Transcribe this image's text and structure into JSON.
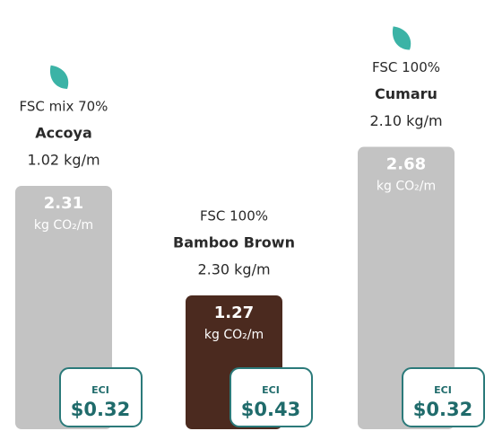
{
  "chart_data": {
    "type": "bar",
    "categories": [
      "Accoya",
      "Bamboo Brown",
      "Cumaru"
    ],
    "certifications": [
      "FSC mix 70%",
      "FSC 100%",
      "FSC 100%"
    ],
    "weights": [
      "1.02 kg/m",
      "2.30 kg/m",
      "2.10 kg/m"
    ],
    "values": [
      2.31,
      1.27,
      2.68
    ],
    "unit": "kg CO₂/m",
    "colors": [
      "#c3c3c3",
      "#4b2a1f",
      "#c3c3c3"
    ],
    "leaf": [
      true,
      false,
      true
    ],
    "leaf_color": "#3bb3a6",
    "eci_label": "ECI",
    "eci_prices": [
      "$0.32",
      "$0.43",
      "$0.32"
    ],
    "eci_color": "#2b7a7a",
    "ylim": [
      0,
      3
    ]
  }
}
